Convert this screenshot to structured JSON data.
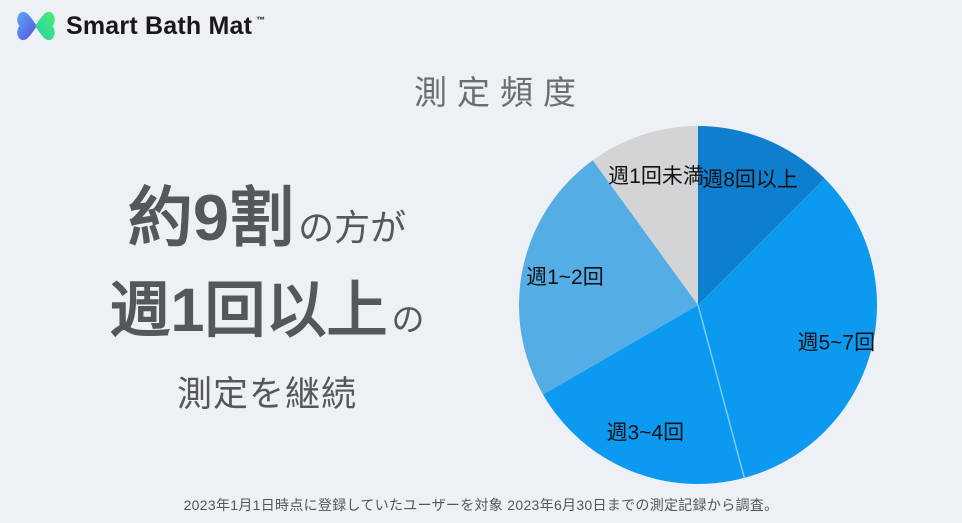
{
  "brand": {
    "name": "Smart Bath Mat",
    "trademark": "™"
  },
  "headline": {
    "line1_strong": "約9割",
    "line1_rest": "の方が",
    "line2_strong": "週1回以上",
    "line2_rest": "の",
    "line3": "測定を継続"
  },
  "footnote": "2023年1月1日時点に登録していたユーザーを対象 2023年6月30日までの測定記録から調査。",
  "colors": {
    "background": "#edf0f4",
    "title_text": "#6a6e73",
    "headline_text": "#54575c",
    "footnote_text": "#52565a",
    "brand_text": "#17181c",
    "logo_blue_start": "#5a4ee2",
    "logo_blue_end": "#55aaf2",
    "logo_green_start": "#25d3a8",
    "logo_green_end": "#46ec76"
  },
  "chart_data": {
    "type": "pie",
    "title": "測定頻度",
    "direction": "clockwise",
    "start_angle_deg": 0,
    "segments": [
      {
        "label": "週8回以上",
        "percent": 12.5,
        "sweep_deg": 45,
        "color": "#0d7fce",
        "label_radius_frac": 0.76
      },
      {
        "label": "週5~7回",
        "percent": 33.3,
        "sweep_deg": 120,
        "color": "#0c9af1",
        "label_radius_frac": 0.8
      },
      {
        "label": "週3~4回",
        "percent": 20.8,
        "sweep_deg": 75,
        "color": "#0c9af1",
        "label_radius_frac": 0.77
      },
      {
        "label": "週1~2回",
        "percent": 23.4,
        "sweep_deg": 84,
        "color": "#55ade5",
        "label_radius_frac": 0.76
      },
      {
        "label": "週1回未満",
        "percent": 10.0,
        "sweep_deg": 36,
        "color": "#d3d4d6",
        "label_radius_frac": 0.76
      }
    ],
    "label_color": "#111111",
    "label_font_size": 21,
    "dividers": [
      {
        "after_label": "週5~7回",
        "color": "rgba(255,255,255,0.45)"
      }
    ],
    "legend": "labels-on-slices"
  }
}
